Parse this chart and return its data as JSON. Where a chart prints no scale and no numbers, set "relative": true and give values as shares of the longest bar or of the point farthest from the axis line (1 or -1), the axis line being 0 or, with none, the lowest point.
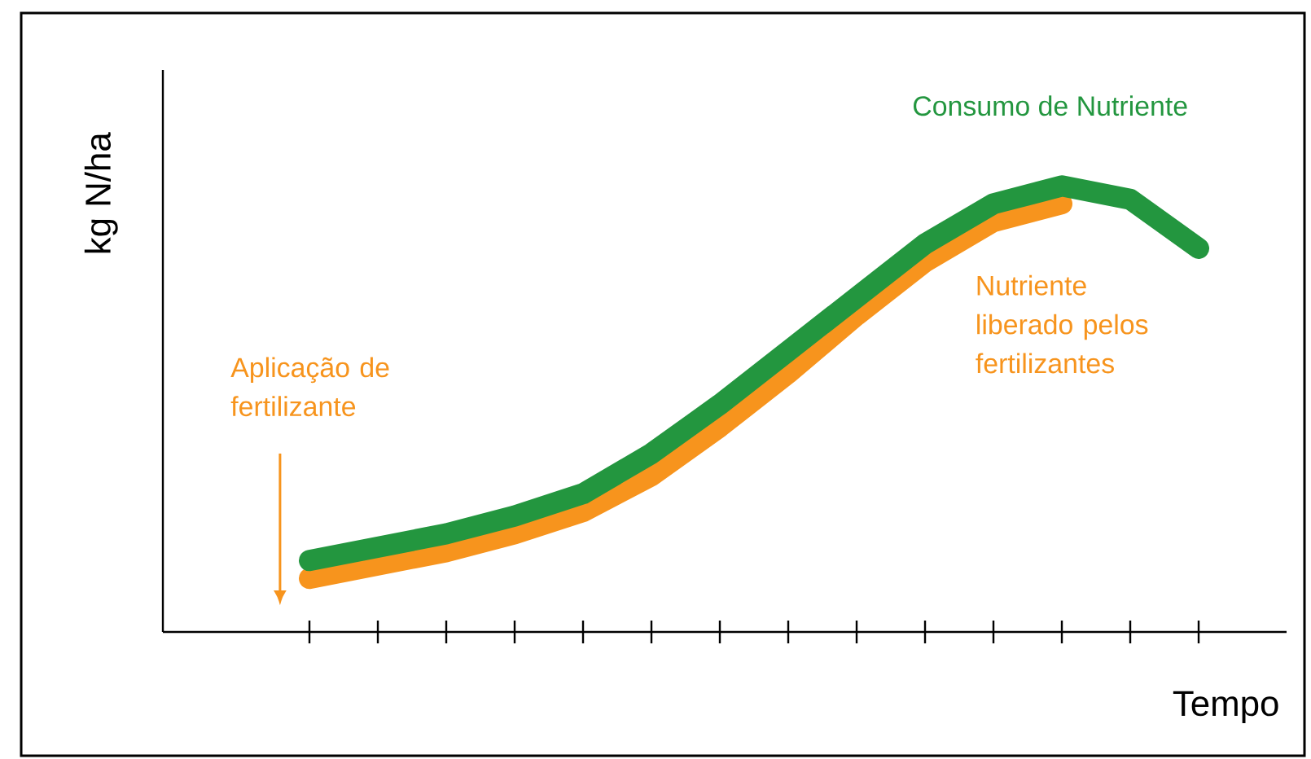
{
  "chart_data": {
    "type": "line",
    "relative": true,
    "marker": "none",
    "xlabel": "Tempo",
    "ylabel": "kg N/ha",
    "categories": [
      null,
      null,
      null,
      null,
      null,
      null,
      null,
      null,
      null,
      null,
      null,
      null,
      null,
      null
    ],
    "series": [
      {
        "name": "Nutriente liberado pelos fertilizantes",
        "color": "#f7941d",
        "values": [
          0.12,
          0.15,
          0.18,
          0.22,
          0.27,
          0.35,
          0.46,
          0.58,
          0.71,
          0.83,
          0.92,
          0.96,
          null,
          null
        ]
      },
      {
        "name": "Consumo de Nutriente",
        "color": "#23963f",
        "values": [
          0.16,
          0.19,
          0.22,
          0.26,
          0.31,
          0.4,
          0.51,
          0.63,
          0.75,
          0.87,
          0.96,
          1.0,
          0.97,
          0.86
        ]
      }
    ],
    "annotations": [
      "Aplicação de fertilizante"
    ]
  }
}
